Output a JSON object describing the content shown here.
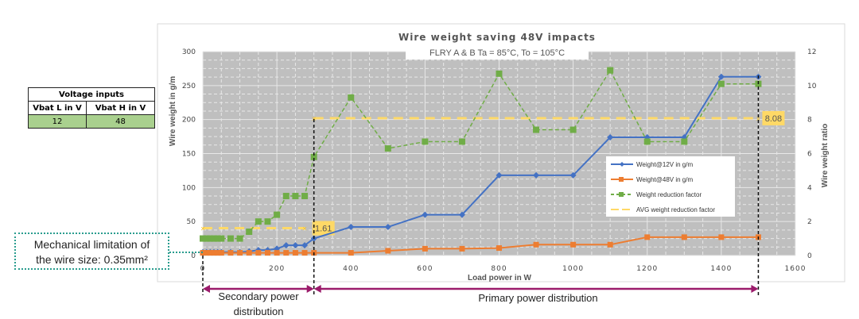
{
  "voltage_table": {
    "title": "Voltage inputs",
    "headers": [
      "Vbat L in V",
      "Vbat H in V"
    ],
    "values": [
      "12",
      "48"
    ]
  },
  "annotations": {
    "mechanical_limit": [
      "Mechanical limitation of",
      "the wire size: 0.35mm²"
    ],
    "secondary": [
      "Secondary power",
      "distribution"
    ],
    "primary": "Primary power distribution"
  },
  "chart_data": {
    "type": "line",
    "title": "Wire weight saving 48V impacts",
    "subtitle": "FLRY A & B Ta = 85°C, To = 105°C",
    "xlabel": "Load power in W",
    "ylabel": "Wire weight in g/m",
    "y2label": "Wire weight ratio",
    "xlim": [
      0,
      1600
    ],
    "ylim": [
      0,
      300
    ],
    "y2lim": [
      0,
      12
    ],
    "xticks": [
      "0",
      "200",
      "400",
      "600",
      "800",
      "1000",
      "1200",
      "1400",
      "1600"
    ],
    "yticks": [
      "0",
      "50",
      "100",
      "150",
      "200",
      "250",
      "300"
    ],
    "y2ticks": [
      "0",
      "2",
      "4",
      "6",
      "8",
      "10",
      "12"
    ],
    "grid": true,
    "legend_position": "center-right",
    "x": [
      0,
      10,
      20,
      30,
      40,
      50,
      75,
      100,
      125,
      150,
      175,
      200,
      225,
      250,
      275,
      300,
      400,
      500,
      600,
      700,
      800,
      900,
      1000,
      1100,
      1200,
      1300,
      1400,
      1500
    ],
    "series": [
      {
        "name": "Weight@12V in g/m",
        "axis": "left",
        "color": "#4472c4",
        "marker": "diamond",
        "dash": false,
        "values": [
          5,
          5,
          5,
          5,
          5,
          5,
          5,
          5,
          6,
          8,
          8,
          10,
          15,
          15,
          15,
          25,
          42,
          42,
          60,
          60,
          118,
          118,
          118,
          174,
          174,
          174,
          263,
          263
        ]
      },
      {
        "name": "Weight@48V in g/m",
        "axis": "left",
        "color": "#ed7d31",
        "marker": "square",
        "dash": false,
        "values": [
          4,
          4,
          4,
          4,
          4,
          4,
          4,
          4,
          4,
          4,
          4,
          4,
          4,
          4,
          4,
          4,
          4,
          7,
          10,
          10,
          11,
          16,
          16,
          16,
          27,
          27,
          27,
          27
        ]
      },
      {
        "name": "Weight reduction factor",
        "axis": "right",
        "color": "#70ad47",
        "marker": "square",
        "dash": true,
        "values": [
          1,
          1,
          1,
          1,
          1,
          1,
          1,
          1,
          1.4,
          2,
          2,
          2.4,
          3.5,
          3.5,
          3.5,
          5.8,
          9.3,
          6.3,
          6.7,
          6.7,
          10.7,
          7.4,
          7.4,
          10.9,
          6.7,
          6.7,
          10.1,
          10.1
        ]
      }
    ],
    "avg_series": {
      "name": "AVG weight reduction factor",
      "color": "#ffd966",
      "segments": [
        {
          "x": [
            0,
            275
          ],
          "value": 1.61,
          "label": "1.61"
        },
        {
          "x": [
            300,
            1500
          ],
          "value": 8.08,
          "label": "8.08"
        }
      ]
    },
    "boundaries_x": [
      0,
      300,
      1500
    ]
  }
}
